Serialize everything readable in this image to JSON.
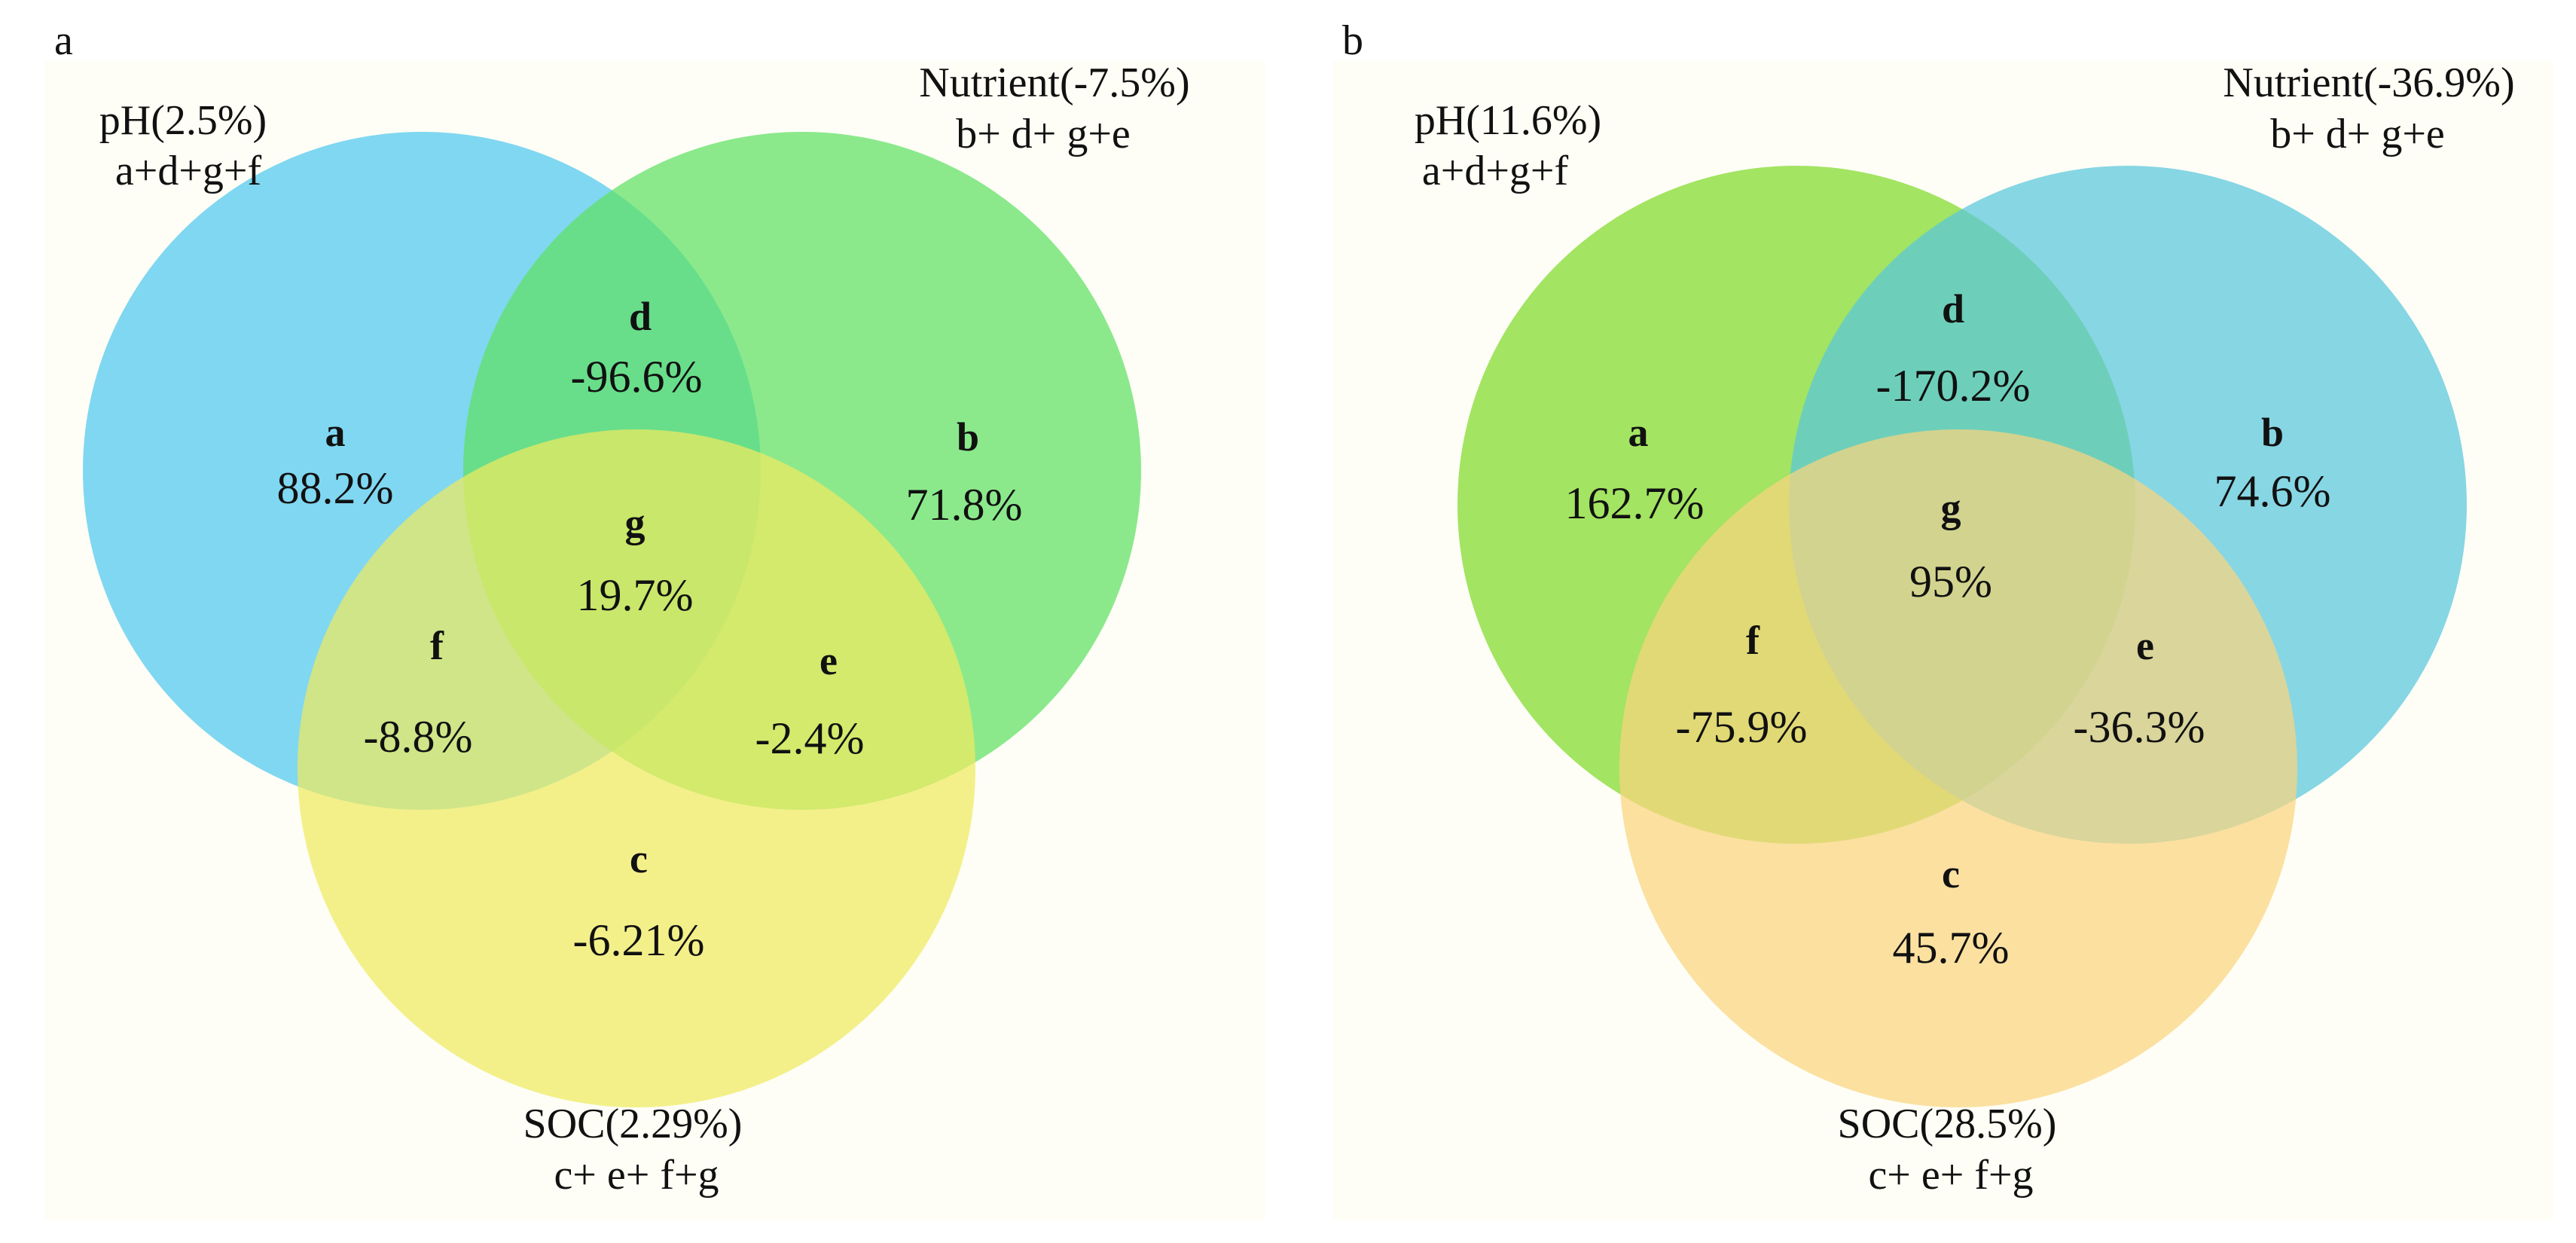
{
  "panels": {
    "a": {
      "label": "a",
      "sets": {
        "ph": {
          "title": "pH(2.5%)",
          "formula": "a+d+g+f",
          "color": "#4fc7ee"
        },
        "nutrient": {
          "title": "Nutrient(-7.5%)",
          "formula": "b+ d+ g+e",
          "color": "#5ee063"
        },
        "soc": {
          "title": "SOC(2.29%)",
          "formula": "c+ e+ f+g",
          "color": "#efea60"
        }
      },
      "regions": {
        "a": {
          "letter": "a",
          "value": "88.2%"
        },
        "b": {
          "letter": "b",
          "value": "71.8%"
        },
        "c": {
          "letter": "c",
          "value": "-6.21%"
        },
        "d": {
          "letter": "d",
          "value": "-96.6%"
        },
        "e": {
          "letter": "e",
          "value": "-2.4%"
        },
        "f": {
          "letter": "f",
          "value": "-8.8%"
        },
        "g": {
          "letter": "g",
          "value": "19.7%"
        }
      }
    },
    "b": {
      "label": "b",
      "sets": {
        "ph": {
          "title": "pH(11.6%)",
          "formula": "a+d+g+f",
          "color": "#80d928"
        },
        "nutrient": {
          "title": "Nutrient(-36.9%)",
          "formula": "b+ d+ g+e",
          "color": "#59c6dc"
        },
        "soc": {
          "title": "SOC(28.5%)",
          "formula": "c+ e+ f+g",
          "color": "#f9d47e"
        }
      },
      "regions": {
        "a": {
          "letter": "a",
          "value": "162.7%"
        },
        "b": {
          "letter": "b",
          "value": "74.6%"
        },
        "c": {
          "letter": "c",
          "value": "45.7%"
        },
        "d": {
          "letter": "d",
          "value": "-170.2%"
        },
        "e": {
          "letter": "e",
          "value": "-36.3%"
        },
        "f": {
          "letter": "f",
          "value": "-75.9%"
        },
        "g": {
          "letter": "g",
          "value": "95%"
        }
      }
    }
  },
  "style": {
    "panel_background": "#fefef6",
    "text_color": "#111111"
  }
}
